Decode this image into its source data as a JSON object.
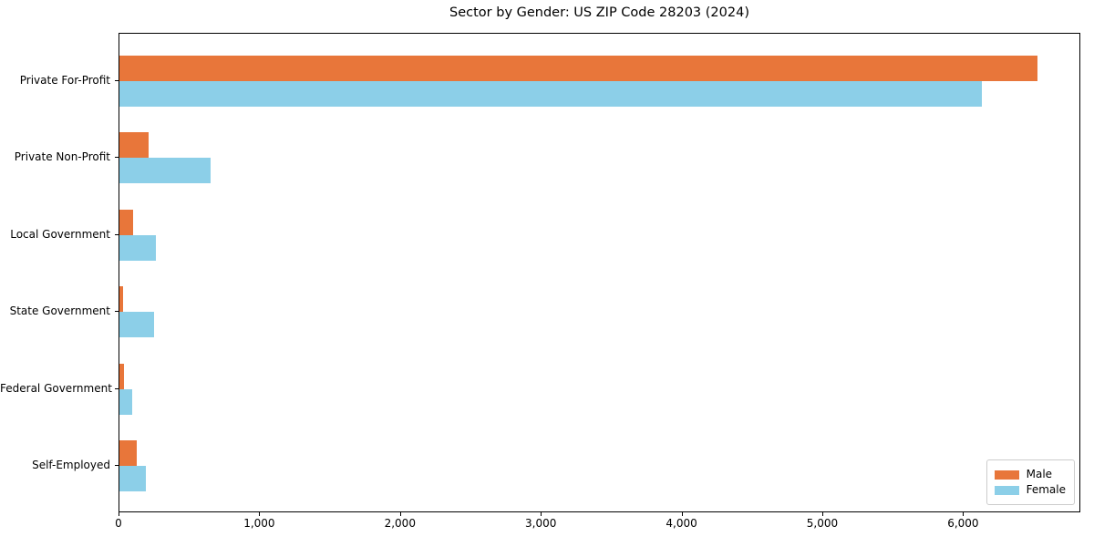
{
  "chart_data": {
    "type": "bar",
    "orientation": "horizontal",
    "title": "Sector by Gender: US ZIP Code 28203 (2024)",
    "categories": [
      "Private For-Profit",
      "Private Non-Profit",
      "Local Government",
      "State Government",
      "Federal Government",
      "Self-Employed"
    ],
    "series": [
      {
        "name": "Male",
        "color": "#e8763a",
        "values": [
          6520,
          210,
          100,
          25,
          35,
          120
        ]
      },
      {
        "name": "Female",
        "color": "#8ccfe8",
        "values": [
          6130,
          650,
          260,
          245,
          90,
          190
        ]
      }
    ],
    "xlabel": "",
    "ylabel": "",
    "xlim": [
      0,
      6833
    ],
    "xticks": [
      0,
      1000,
      2000,
      3000,
      4000,
      5000,
      6000
    ],
    "xtick_labels": [
      "0",
      "1,000",
      "2,000",
      "3,000",
      "4,000",
      "5,000",
      "6,000"
    ],
    "grid": false,
    "legend": {
      "position": "lower right",
      "entries": [
        "Male",
        "Female"
      ]
    },
    "colors": {
      "axis": "#000000",
      "background": "#ffffff",
      "legend_border": "#cccccc"
    }
  }
}
